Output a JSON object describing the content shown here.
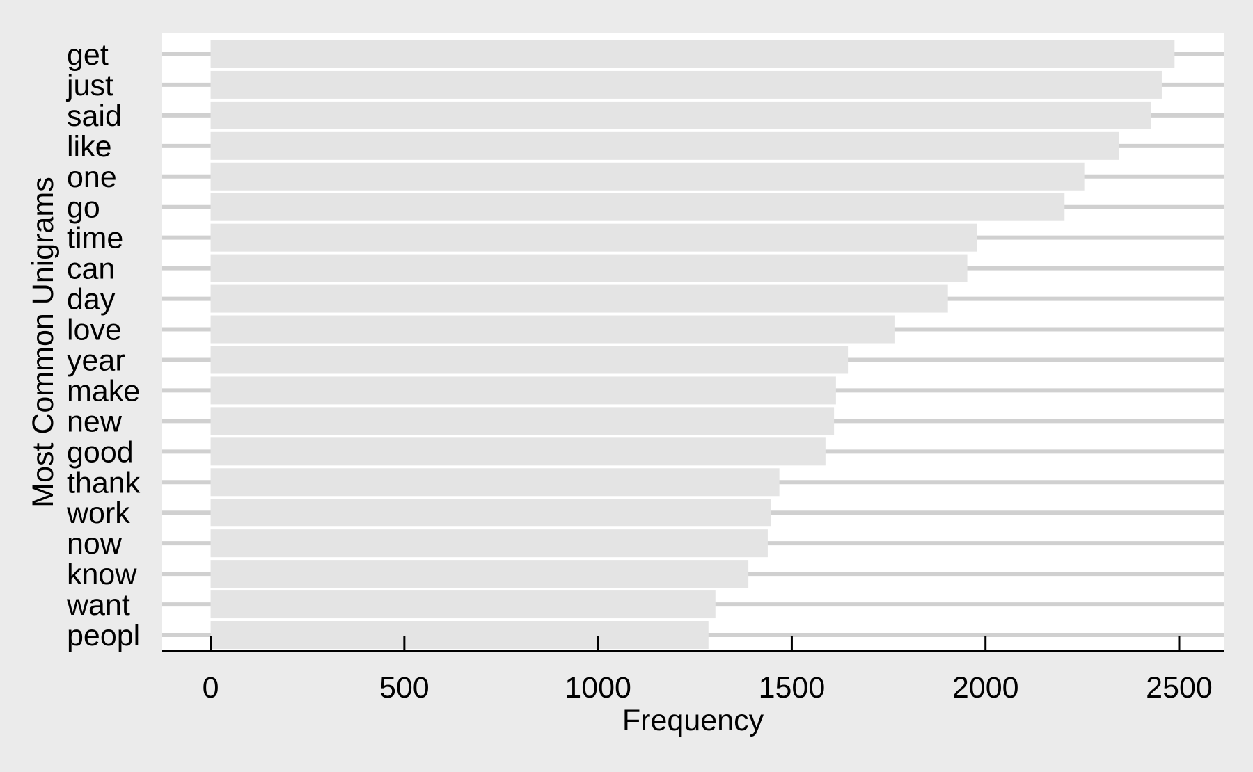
{
  "chart_data": {
    "type": "bar",
    "orientation": "horizontal",
    "categories": [
      "get",
      "just",
      "said",
      "like",
      "one",
      "go",
      "time",
      "can",
      "day",
      "love",
      "year",
      "make",
      "new",
      "good",
      "thank",
      "work",
      "now",
      "know",
      "want",
      "peopl"
    ],
    "values": [
      2488,
      2455,
      2427,
      2344,
      2255,
      2204,
      1978,
      1953,
      1903,
      1765,
      1645,
      1614,
      1609,
      1587,
      1468,
      1446,
      1438,
      1388,
      1303,
      1285
    ],
    "xlabel": "Frequency",
    "ylabel": "Most Common Unigrams",
    "xlim": [
      -125,
      2615
    ],
    "xticks": [
      0,
      500,
      1000,
      1500,
      2000,
      2500
    ],
    "grid": "horizontal",
    "legend": "none"
  },
  "colors": {
    "background": "#ebebeb",
    "panel": "#ffffff",
    "bar": "#e4e4e4",
    "gridline": "#c8c8c8",
    "axis": "#000000"
  }
}
